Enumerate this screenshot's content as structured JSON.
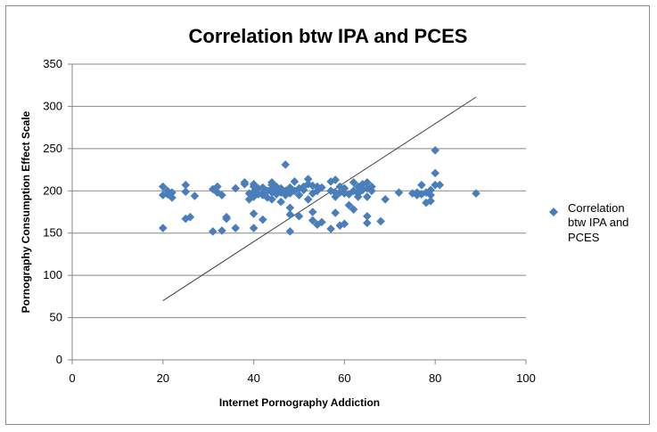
{
  "chart_data": {
    "type": "scatter",
    "title": "Correlation btw IPA and PCES",
    "xlabel": "Internet Pornography Addiction",
    "ylabel": "Pornography Consumption Effect Scale",
    "xlim": [
      0,
      100
    ],
    "ylim": [
      0,
      350
    ],
    "xticks": [
      0,
      20,
      40,
      60,
      80,
      100
    ],
    "yticks": [
      0,
      50,
      100,
      150,
      200,
      250,
      300,
      350
    ],
    "grid": "horizontal",
    "legend": {
      "position": "right",
      "label_lines": [
        "Correlation",
        "btw IPA and",
        "PCES"
      ]
    },
    "marker_color": "#4a7ebb",
    "trendline": {
      "points": [
        [
          20,
          70
        ],
        [
          89,
          311
        ]
      ],
      "color": "#404040"
    },
    "series": [
      {
        "name": "Correlation btw IPA and PCES",
        "points": [
          [
            20,
            205
          ],
          [
            20,
            195
          ],
          [
            20,
            156
          ],
          [
            21,
            200
          ],
          [
            21,
            196
          ],
          [
            22,
            192
          ],
          [
            22,
            198
          ],
          [
            25,
            207
          ],
          [
            25,
            199
          ],
          [
            25,
            167
          ],
          [
            26,
            169
          ],
          [
            27,
            194
          ],
          [
            31,
            202
          ],
          [
            31,
            152
          ],
          [
            32,
            205
          ],
          [
            32,
            198
          ],
          [
            33,
            195
          ],
          [
            33,
            153
          ],
          [
            34,
            169
          ],
          [
            34,
            167
          ],
          [
            36,
            203
          ],
          [
            36,
            156
          ],
          [
            38,
            210
          ],
          [
            38,
            208
          ],
          [
            39,
            190
          ],
          [
            39,
            197
          ],
          [
            40,
            208
          ],
          [
            40,
            205
          ],
          [
            40,
            199
          ],
          [
            40,
            193
          ],
          [
            40,
            173
          ],
          [
            40,
            156
          ],
          [
            41,
            203
          ],
          [
            41,
            196
          ],
          [
            42,
            204
          ],
          [
            42,
            197
          ],
          [
            42,
            195
          ],
          [
            42,
            166
          ],
          [
            43,
            200
          ],
          [
            43,
            192
          ],
          [
            44,
            210
          ],
          [
            44,
            207
          ],
          [
            44,
            203
          ],
          [
            44,
            198
          ],
          [
            44,
            190
          ],
          [
            45,
            205
          ],
          [
            45,
            200
          ],
          [
            45,
            196
          ],
          [
            46,
            203
          ],
          [
            46,
            198
          ],
          [
            46,
            187
          ],
          [
            47,
            231
          ],
          [
            47,
            200
          ],
          [
            47,
            195
          ],
          [
            48,
            204
          ],
          [
            48,
            197
          ],
          [
            48,
            180
          ],
          [
            48,
            172
          ],
          [
            48,
            152
          ],
          [
            49,
            211
          ],
          [
            49,
            200
          ],
          [
            50,
            203
          ],
          [
            50,
            195
          ],
          [
            50,
            170
          ],
          [
            51,
            205
          ],
          [
            51,
            201
          ],
          [
            52,
            214
          ],
          [
            52,
            208
          ],
          [
            52,
            190
          ],
          [
            53,
            206
          ],
          [
            53,
            197
          ],
          [
            53,
            175
          ],
          [
            53,
            165
          ],
          [
            54,
            205
          ],
          [
            54,
            200
          ],
          [
            54,
            160
          ],
          [
            55,
            204
          ],
          [
            55,
            163
          ],
          [
            57,
            211
          ],
          [
            57,
            200
          ],
          [
            57,
            155
          ],
          [
            58,
            213
          ],
          [
            58,
            198
          ],
          [
            58,
            174
          ],
          [
            58,
            193
          ],
          [
            59,
            205
          ],
          [
            59,
            198
          ],
          [
            59,
            159
          ],
          [
            60,
            203
          ],
          [
            60,
            197
          ],
          [
            60,
            161
          ],
          [
            61,
            183
          ],
          [
            61,
            196
          ],
          [
            62,
            210
          ],
          [
            62,
            200
          ],
          [
            62,
            178
          ],
          [
            63,
            205
          ],
          [
            63,
            197
          ],
          [
            63,
            193
          ],
          [
            64,
            208
          ],
          [
            64,
            201
          ],
          [
            65,
            210
          ],
          [
            65,
            203
          ],
          [
            65,
            193
          ],
          [
            65,
            170
          ],
          [
            65,
            162
          ],
          [
            66,
            200
          ],
          [
            66,
            205
          ],
          [
            68,
            164
          ],
          [
            69,
            190
          ],
          [
            72,
            198
          ],
          [
            75,
            197
          ],
          [
            76,
            198
          ],
          [
            76,
            195
          ],
          [
            77,
            207
          ],
          [
            77,
            196
          ],
          [
            78,
            198
          ],
          [
            78,
            186
          ],
          [
            79,
            201
          ],
          [
            79,
            195
          ],
          [
            79,
            188
          ],
          [
            80,
            248
          ],
          [
            80,
            221
          ],
          [
            80,
            207
          ],
          [
            81,
            207
          ],
          [
            89,
            197
          ]
        ]
      }
    ]
  }
}
